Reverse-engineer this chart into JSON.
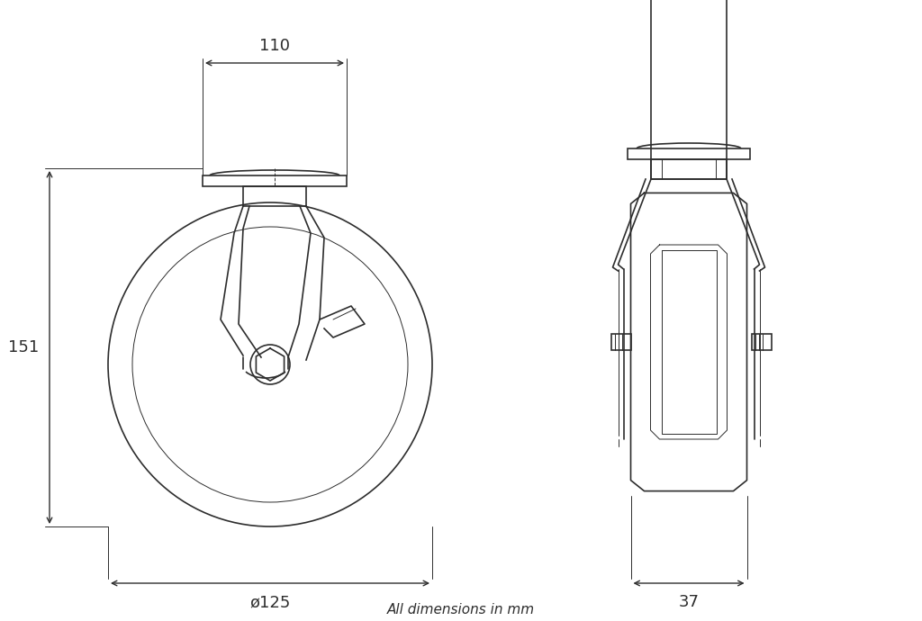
{
  "bg_color": "#ffffff",
  "line_color": "#2d2d2d",
  "dim_color": "#2d2d2d",
  "line_width": 1.2,
  "thin_line": 0.7,
  "thick_line": 1.8,
  "fig_width": 10.24,
  "fig_height": 6.9,
  "dpi": 100,
  "footer_text": "All dimensions in mm",
  "dim_110": "110",
  "dim_151": "151",
  "dim_125": "ø125",
  "dim_37": "37",
  "font_size_dim": 13,
  "font_size_footer": 11
}
